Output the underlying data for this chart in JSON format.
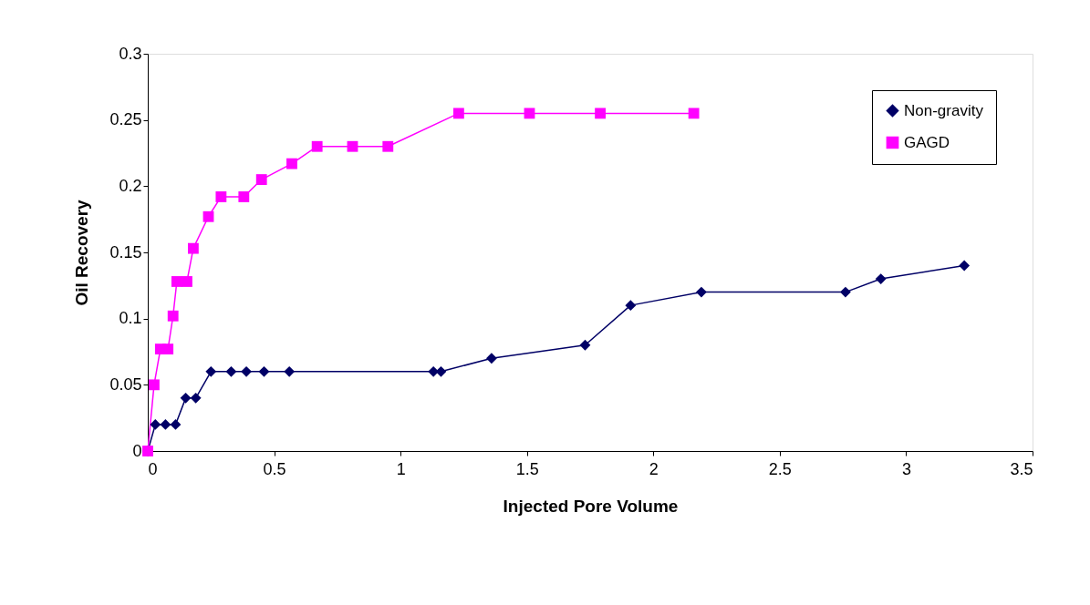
{
  "chart_data": {
    "type": "line",
    "xlabel": "Injected Pore Volume",
    "ylabel": "Oil Recovery",
    "xlim": [
      0,
      3.5
    ],
    "xticks": [
      0,
      0.5,
      1,
      1.5,
      2,
      2.5,
      3,
      3.5
    ],
    "ylim": [
      0,
      0.3
    ],
    "yticks": [
      0,
      0.05,
      0.1,
      0.15,
      0.2,
      0.25,
      0.3
    ],
    "grid": false,
    "legend": "top right",
    "series": [
      {
        "name": "Non-gravity",
        "color": "#000066",
        "marker": "diamond",
        "x": [
          0,
          0.03,
          0.07,
          0.11,
          0.15,
          0.19,
          0.25,
          0.33,
          0.39,
          0.46,
          0.56,
          1.13,
          1.16,
          1.36,
          1.73,
          1.91,
          2.19,
          2.76,
          2.9,
          3.23
        ],
        "values": [
          0,
          0.02,
          0.02,
          0.02,
          0.04,
          0.04,
          0.06,
          0.06,
          0.06,
          0.06,
          0.06,
          0.06,
          0.06,
          0.07,
          0.08,
          0.11,
          0.12,
          0.12,
          0.13,
          0.14
        ]
      },
      {
        "name": "GAGD",
        "color": "#ff00ff",
        "marker": "square",
        "x": [
          0,
          0.025,
          0.05,
          0.08,
          0.1,
          0.115,
          0.155,
          0.18,
          0.24,
          0.29,
          0.38,
          0.45,
          0.57,
          0.67,
          0.81,
          0.95,
          1.23,
          1.51,
          1.79,
          2.16
        ],
        "values": [
          0,
          0.05,
          0.077,
          0.077,
          0.102,
          0.128,
          0.128,
          0.153,
          0.177,
          0.192,
          0.192,
          0.205,
          0.217,
          0.23,
          0.23,
          0.23,
          0.255,
          0.255,
          0.255,
          0.255
        ]
      }
    ]
  }
}
